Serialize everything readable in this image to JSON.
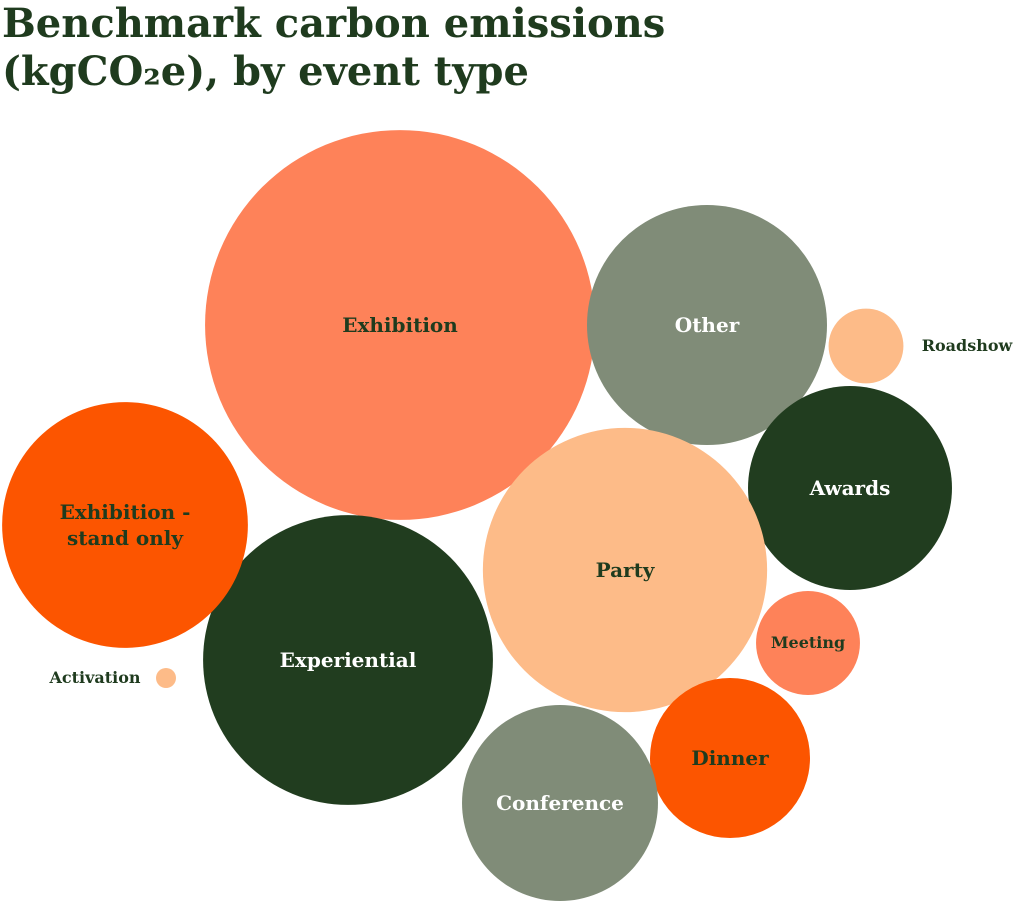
{
  "chart_data": {
    "type": "bubble",
    "title": "Benchmark carbon emissions (kgCO₂e), by event type",
    "categories": [
      "Exhibition",
      "Other",
      "Roadshow",
      "Awards",
      "Party",
      "Meeting",
      "Dinner",
      "Conference",
      "Experiential",
      "Exhibition - stand only",
      "Activation"
    ],
    "values": [
      380,
      144,
      14,
      104,
      202,
      27,
      64,
      96,
      210,
      151,
      1
    ],
    "colors": [
      "#fe8259",
      "#808c78",
      "#fdbb88",
      "#213d1f",
      "#fdbb88",
      "#fe8259",
      "#fc5500",
      "#808c78",
      "#213d1f",
      "#fc5500",
      "#fdbb88"
    ]
  }
}
